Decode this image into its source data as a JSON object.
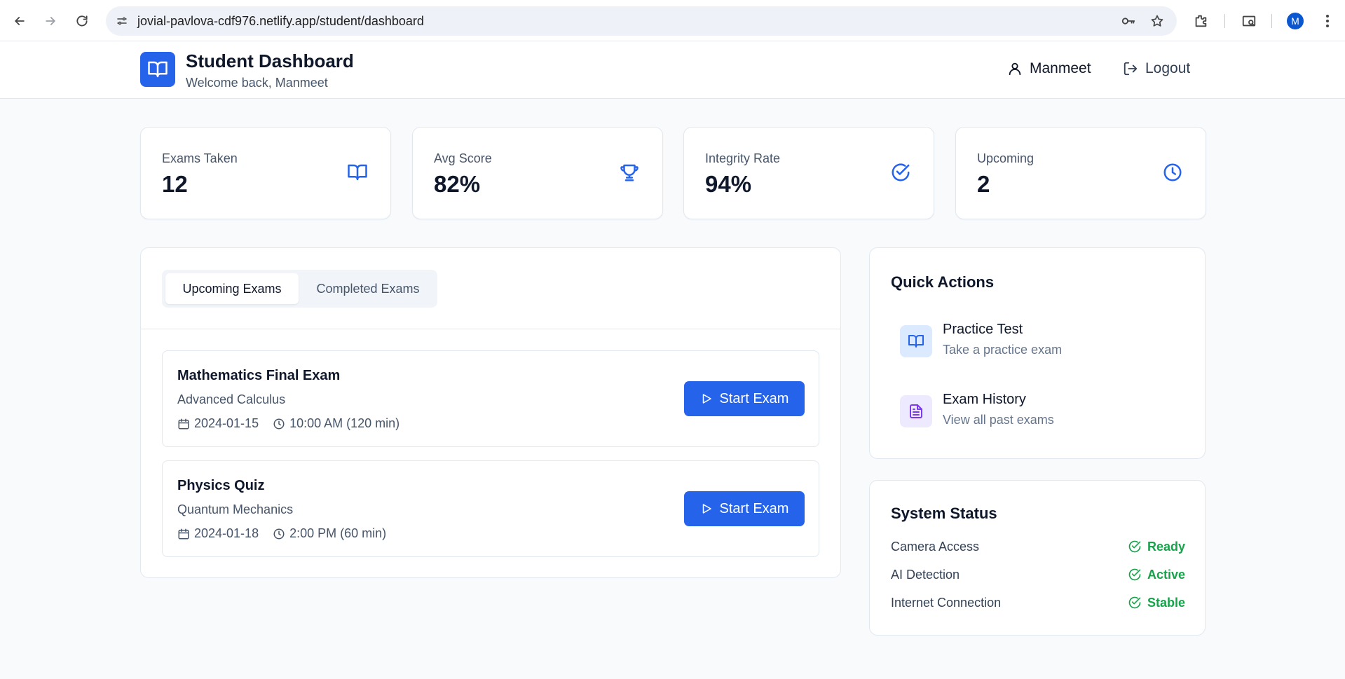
{
  "browser": {
    "url": "jovial-pavlova-cdf976.netlify.app/student/dashboard",
    "avatar_initial": "M"
  },
  "header": {
    "title": "Student Dashboard",
    "subtitle": "Welcome back, Manmeet",
    "user_name": "Manmeet",
    "logout_label": "Logout"
  },
  "stats": [
    {
      "label": "Exams Taken",
      "value": "12",
      "icon": "book-open-icon"
    },
    {
      "label": "Avg Score",
      "value": "82%",
      "icon": "trophy-icon"
    },
    {
      "label": "Integrity Rate",
      "value": "94%",
      "icon": "check-circle-icon"
    },
    {
      "label": "Upcoming",
      "value": "2",
      "icon": "clock-icon"
    }
  ],
  "tabs": [
    {
      "label": "Upcoming Exams",
      "active": true
    },
    {
      "label": "Completed Exams",
      "active": false
    }
  ],
  "exams": [
    {
      "title": "Mathematics Final Exam",
      "subject": "Advanced Calculus",
      "date": "2024-01-15",
      "time": "10:00 AM (120 min)",
      "button": "Start Exam"
    },
    {
      "title": "Physics Quiz",
      "subject": "Quantum Mechanics",
      "date": "2024-01-18",
      "time": "2:00 PM (60 min)",
      "button": "Start Exam"
    }
  ],
  "quick_actions": {
    "heading": "Quick Actions",
    "items": [
      {
        "title": "Practice Test",
        "desc": "Take a practice exam",
        "icon": "book-open-icon"
      },
      {
        "title": "Exam History",
        "desc": "View all past exams",
        "icon": "file-text-icon"
      }
    ]
  },
  "system_status": {
    "heading": "System Status",
    "items": [
      {
        "name": "Camera Access",
        "status": "Ready"
      },
      {
        "name": "AI Detection",
        "status": "Active"
      },
      {
        "name": "Internet Connection",
        "status": "Stable"
      }
    ]
  },
  "colors": {
    "primary": "#2563eb",
    "success": "#16a34a",
    "purple": "#7c3aed"
  }
}
